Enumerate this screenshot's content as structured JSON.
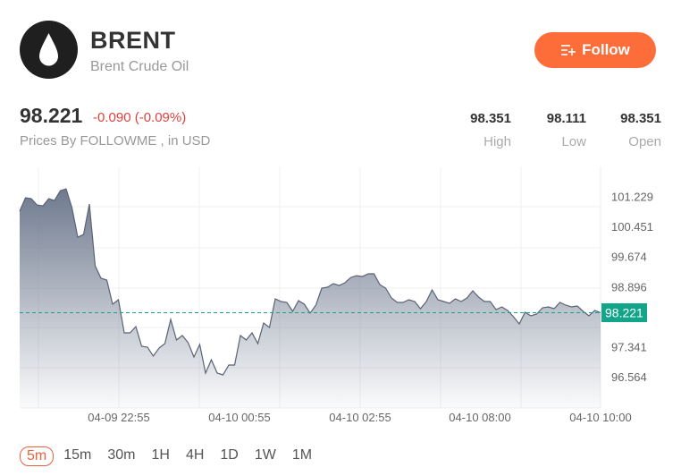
{
  "header": {
    "symbol": "BRENT",
    "name": "Brent Crude Oil",
    "logo_icon": "oil-drop-icon",
    "follow_label": "Follow",
    "follow_icon": "list-plus-icon",
    "accent_color": "#fd6d3a"
  },
  "quote": {
    "price": "98.221",
    "change": "-0.090 (-0.09%)",
    "source": "Prices By FOLLOWME , in USD",
    "stats": [
      {
        "value": "98.351",
        "label": "High"
      },
      {
        "value": "98.111",
        "label": "Low"
      },
      {
        "value": "98.351",
        "label": "Open"
      }
    ],
    "change_color": "#e0403f"
  },
  "timeframes": {
    "items": [
      "5m",
      "15m",
      "30m",
      "1H",
      "4H",
      "1D",
      "1W",
      "1M"
    ],
    "selected": "5m"
  },
  "chart_data": {
    "type": "area",
    "x_tick_labels": [
      "04-09 22:55",
      "04-10 00:55",
      "04-10 02:55",
      "04-10 08:00",
      "04-10 10:00"
    ],
    "y_tick_labels": [
      "101.229",
      "100.451",
      "99.674",
      "98.896",
      "97.341",
      "96.564"
    ],
    "y_ticks": [
      101.229,
      100.451,
      99.674,
      98.896,
      97.341,
      96.564
    ],
    "ylim": [
      95.76,
      102.0
    ],
    "current_price": 98.221,
    "current_price_label": "98.221",
    "current_price_color": "#12a58a",
    "line_color": "#5a6274",
    "grid": true,
    "values": [
      100.842,
      101.189,
      101.166,
      101.004,
      100.981,
      101.166,
      101.119,
      101.373,
      101.42,
      100.935,
      100.173,
      100.242,
      101.027,
      99.433,
      99.11,
      99.064,
      98.44,
      98.556,
      97.701,
      97.701,
      97.863,
      97.355,
      97.332,
      97.101,
      97.309,
      97.424,
      98.048,
      97.517,
      97.632,
      97.447,
      97.078,
      97.401,
      96.662,
      97.009,
      96.662,
      96.616,
      96.87,
      96.87,
      97.632,
      97.517,
      97.701,
      97.424,
      97.955,
      97.84,
      98.579,
      98.51,
      98.487,
      98.256,
      98.533,
      98.44,
      98.209,
      98.417,
      98.856,
      98.879,
      98.972,
      98.925,
      98.995,
      99.133,
      99.179,
      99.156,
      99.226,
      99.226,
      98.948,
      98.856,
      98.602,
      98.487,
      98.487,
      98.556,
      98.51,
      98.325,
      98.51,
      98.81,
      98.556,
      98.51,
      98.463,
      98.579,
      98.51,
      98.602,
      98.787,
      98.625,
      98.51,
      98.51,
      98.302,
      98.371,
      98.279,
      98.117,
      97.932,
      98.233,
      98.14,
      98.186,
      98.348,
      98.371,
      98.325,
      98.487,
      98.417,
      98.371,
      98.394,
      98.256,
      98.14,
      98.279,
      98.221
    ]
  }
}
